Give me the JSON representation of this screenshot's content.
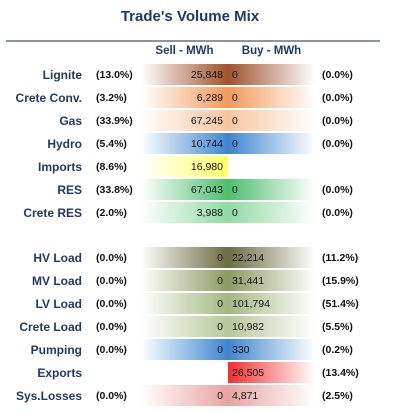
{
  "title": "Trade's Volume Mix",
  "columns": {
    "sell": "Sell - MWh",
    "buy": "Buy - MWh"
  },
  "colors": {
    "Lignite": "#a0522d",
    "Crete Conv.": "#f39a5b",
    "Gas": "#f7c59f",
    "Hydro": "#3d86d0",
    "Imports": "#ffff66",
    "RES": "#4cbf6e",
    "Crete RES": "#8fdba3",
    "HV Load": "#6b6b42",
    "MV Load": "#8c9a62",
    "LV Load": "#a3b882",
    "Crete Load": "#b8c89c",
    "Pumping": "#3d86d0",
    "Exports": "#f22f2f",
    "Sys.Losses": "#e8a3a3"
  },
  "chart_data": {
    "type": "table",
    "title": "Trade's Volume Mix",
    "columns": [
      "Sell - MWh",
      "Buy - MWh"
    ],
    "rows": [
      {
        "label": "Lignite",
        "sell_pct": "(13.0%)",
        "sell": 25848,
        "sell_text": "25,848",
        "buy": 0,
        "buy_text": "0",
        "buy_pct": "(0.0%)"
      },
      {
        "label": "Crete Conv.",
        "sell_pct": "(3.2%)",
        "sell": 6289,
        "sell_text": "6,289",
        "buy": 0,
        "buy_text": "0",
        "buy_pct": "(0.0%)"
      },
      {
        "label": "Gas",
        "sell_pct": "(33.9%)",
        "sell": 67245,
        "sell_text": "67,245",
        "buy": 0,
        "buy_text": "0",
        "buy_pct": "(0.0%)"
      },
      {
        "label": "Hydro",
        "sell_pct": "(5.4%)",
        "sell": 10744,
        "sell_text": "10,744",
        "buy": 0,
        "buy_text": "0",
        "buy_pct": "(0.0%)"
      },
      {
        "label": "Imports",
        "sell_pct": "(8.6%)",
        "sell": 16980,
        "sell_text": "16,980",
        "buy": null,
        "buy_text": "",
        "buy_pct": ""
      },
      {
        "label": "RES",
        "sell_pct": "(33.8%)",
        "sell": 67043,
        "sell_text": "67,043",
        "buy": 0,
        "buy_text": "0",
        "buy_pct": "(0.0%)"
      },
      {
        "label": "Crete RES",
        "sell_pct": "(2.0%)",
        "sell": 3988,
        "sell_text": "3,988",
        "buy": 0,
        "buy_text": "0",
        "buy_pct": "(0.0%)"
      },
      {
        "label": "HV Load",
        "sell_pct": "(0.0%)",
        "sell": 0,
        "sell_text": "0",
        "buy": 22214,
        "buy_text": "22,214",
        "buy_pct": "(11.2%)"
      },
      {
        "label": "MV Load",
        "sell_pct": "(0.0%)",
        "sell": 0,
        "sell_text": "0",
        "buy": 31441,
        "buy_text": "31,441",
        "buy_pct": "(15.9%)"
      },
      {
        "label": "LV Load",
        "sell_pct": "(0.0%)",
        "sell": 0,
        "sell_text": "0",
        "buy": 101794,
        "buy_text": "101,794",
        "buy_pct": "(51.4%)"
      },
      {
        "label": "Crete Load",
        "sell_pct": "(0.0%)",
        "sell": 0,
        "sell_text": "0",
        "buy": 10982,
        "buy_text": "10,982",
        "buy_pct": "(5.5%)"
      },
      {
        "label": "Pumping",
        "sell_pct": "(0.0%)",
        "sell": 0,
        "sell_text": "0",
        "buy": 330,
        "buy_text": "330",
        "buy_pct": "(0.2%)"
      },
      {
        "label": "Exports",
        "sell_pct": "",
        "sell": null,
        "sell_text": "",
        "buy": 26505,
        "buy_text": "26,505",
        "buy_pct": "(13.4%)"
      },
      {
        "label": "Sys.Losses",
        "sell_pct": "(0.0%)",
        "sell": 0,
        "sell_text": "0",
        "buy": 4871,
        "buy_text": "4,871",
        "buy_pct": "(2.5%)"
      }
    ]
  }
}
